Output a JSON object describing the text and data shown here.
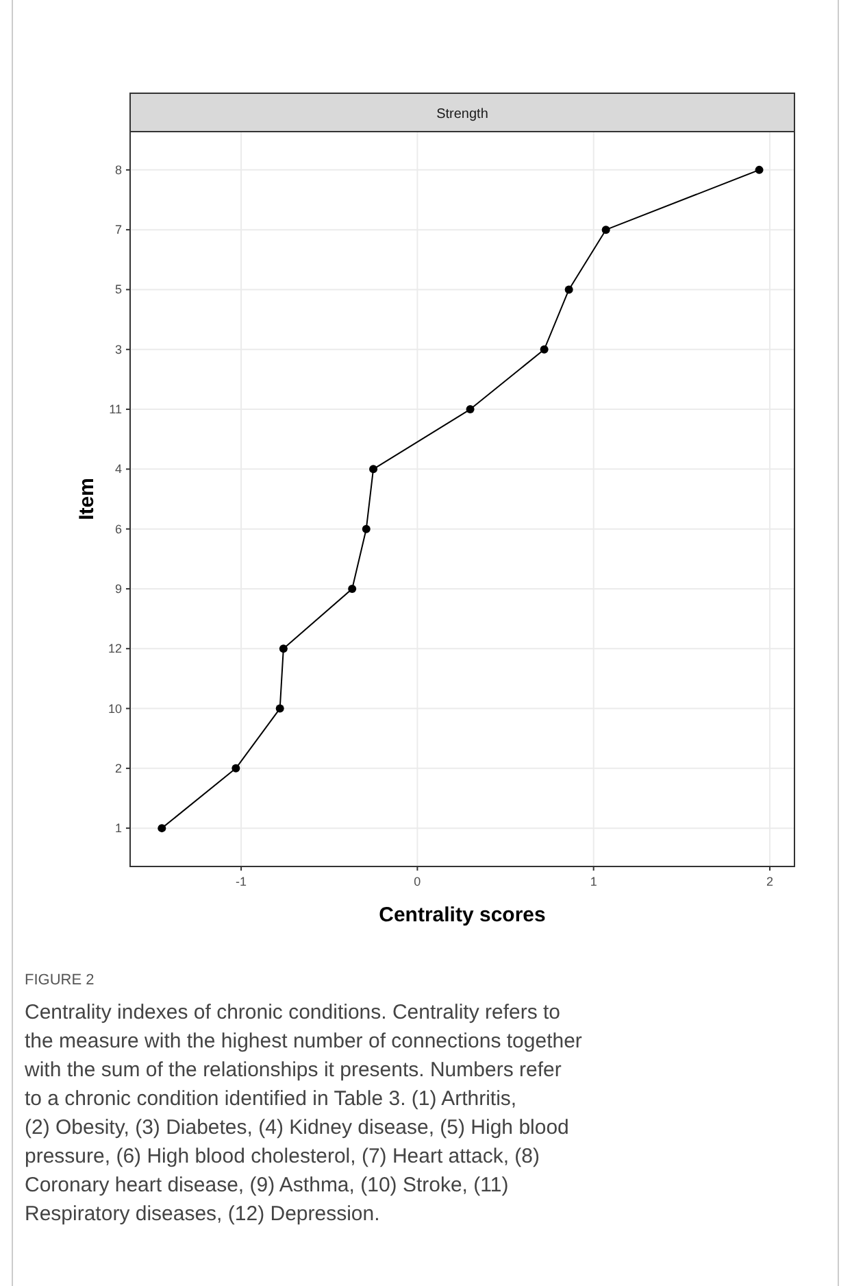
{
  "chart_data": {
    "type": "line",
    "orientation": "horizontal",
    "title": "Strength",
    "xlabel": "Centrality scores",
    "ylabel": "Item",
    "categories": [
      "8",
      "7",
      "5",
      "3",
      "11",
      "4",
      "6",
      "9",
      "12",
      "10",
      "2",
      "1"
    ],
    "values": [
      1.94,
      1.07,
      0.86,
      0.72,
      0.3,
      -0.25,
      -0.29,
      -0.37,
      -0.76,
      -0.78,
      -1.03,
      -1.45
    ],
    "color": "#000000",
    "marker": "circle",
    "line_style": "solid",
    "grid": true,
    "xlim": [
      -1.63,
      2.14
    ],
    "xticks": [
      -1,
      0,
      1,
      2
    ],
    "annotations": [
      "FIGURE 2",
      "Centrality indexes of chronic conditions. Centrality refers to the measure with the highest number of connections together with the sum of the relationships it presents. Numbers refer to a chronic condition identified in Table 3. (1) Arthritis, (2) Obesity, (3) Diabetes, (4) Kidney disease, (5) High blood pressure, (6) High blood cholesterol, (7) Heart attack, (8) Coronary heart disease, (9) Asthma, (10) Stroke, (11) Respiratory diseases, (12) Depression."
    ]
  }
}
